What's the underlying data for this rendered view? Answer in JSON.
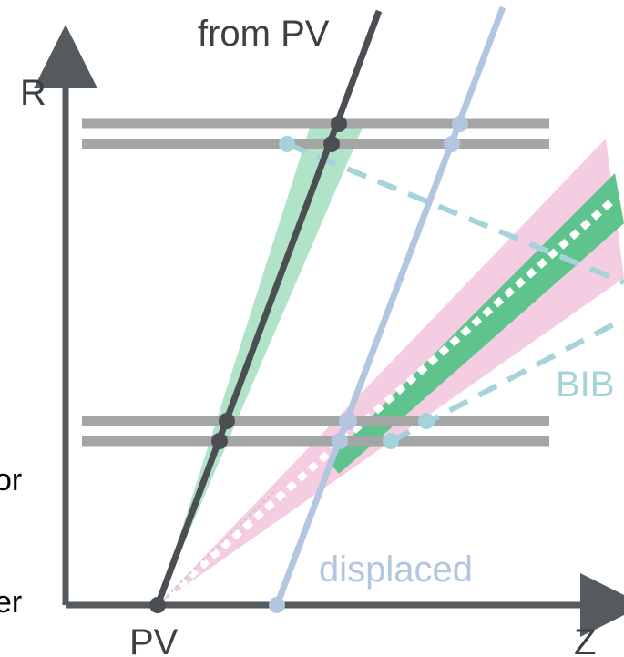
{
  "labels": {
    "axis_r": "R",
    "axis_z": "Z",
    "pv": "PV",
    "from_pv": "from PV",
    "displaced": "displaced",
    "bib": "BIB",
    "cut_left_1": "or",
    "cut_left_2": "er"
  },
  "colors": {
    "axis": "#555a5e",
    "layer": "#a3a6a5",
    "track_pv": "#4b4f54",
    "track_displaced": "#b3c6e0",
    "bib": "#a6d3d9",
    "green_cone": "#a8e0c2",
    "pink_cone": "#f3c4de",
    "green_band": "#5fc38e",
    "white_dots": "#ffffff",
    "text_dark": "#3c4043",
    "text_displaced": "#b3c6e0",
    "text_bib": "#a6d3d9"
  }
}
